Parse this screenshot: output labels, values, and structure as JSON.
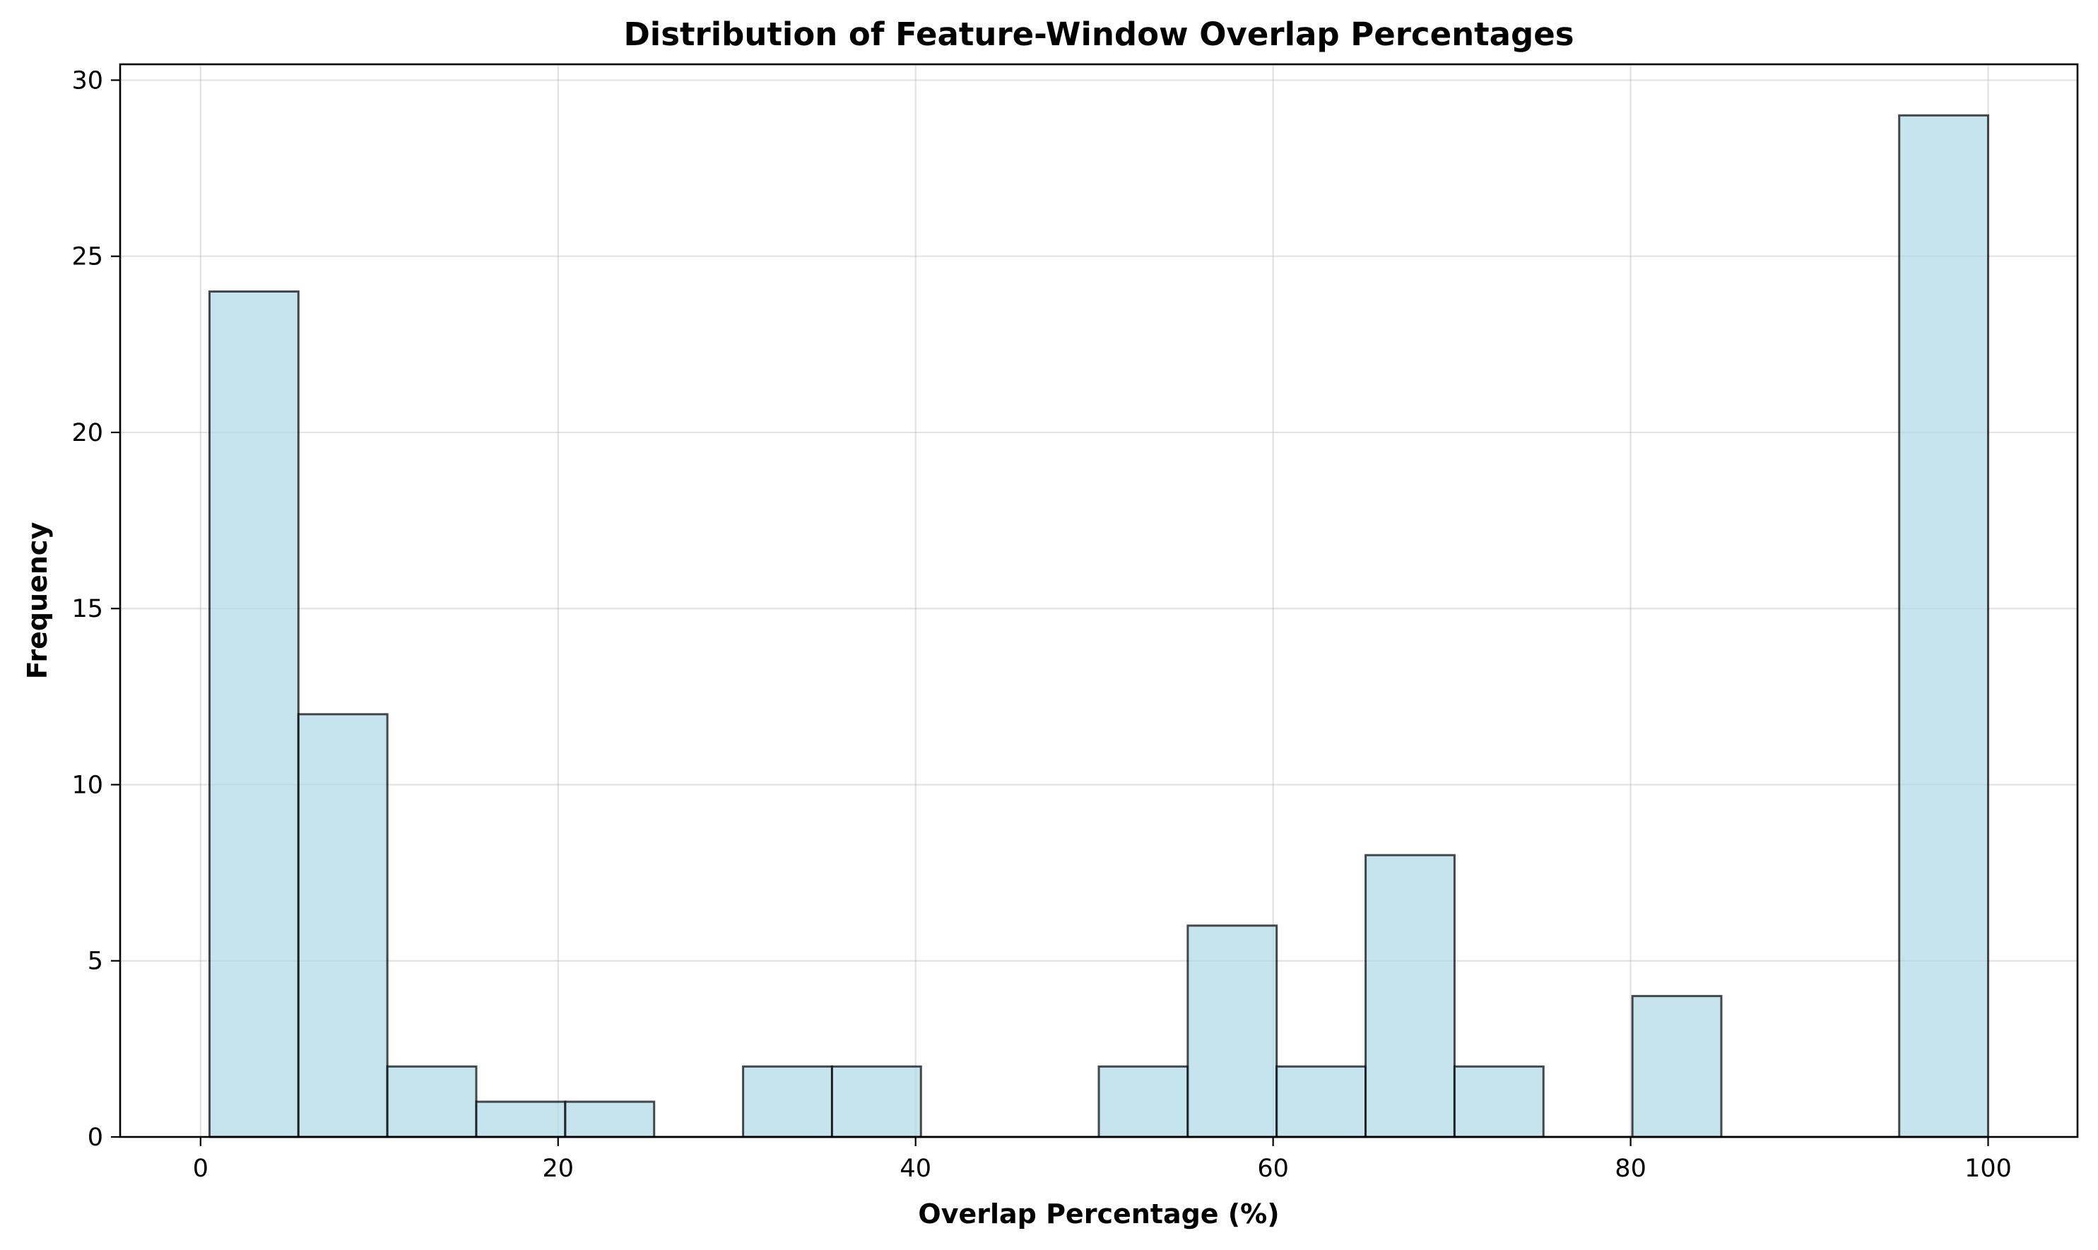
{
  "chart_data": {
    "type": "bar",
    "subtype": "histogram",
    "title": "Distribution of Feature-Window Overlap Percentages",
    "xlabel": "Overlap Percentage (%)",
    "ylabel": "Frequency",
    "xlim": [
      -4.5,
      105
    ],
    "ylim": [
      0,
      30.45
    ],
    "xticks": [
      0,
      20,
      40,
      60,
      80,
      100
    ],
    "yticks": [
      0,
      5,
      10,
      15,
      20,
      25,
      30
    ],
    "grid": true,
    "bins": [
      {
        "start": 0.5,
        "end": 5.475,
        "count": 24
      },
      {
        "start": 5.475,
        "end": 10.45,
        "count": 12
      },
      {
        "start": 10.45,
        "end": 15.425,
        "count": 2
      },
      {
        "start": 15.425,
        "end": 20.4,
        "count": 1
      },
      {
        "start": 20.4,
        "end": 25.375,
        "count": 1
      },
      {
        "start": 25.375,
        "end": 30.35,
        "count": 0
      },
      {
        "start": 30.35,
        "end": 35.325,
        "count": 2
      },
      {
        "start": 35.325,
        "end": 40.3,
        "count": 2
      },
      {
        "start": 40.3,
        "end": 45.275,
        "count": 0
      },
      {
        "start": 45.275,
        "end": 50.25,
        "count": 0
      },
      {
        "start": 50.25,
        "end": 55.225,
        "count": 2
      },
      {
        "start": 55.225,
        "end": 60.2,
        "count": 6
      },
      {
        "start": 60.2,
        "end": 65.175,
        "count": 2
      },
      {
        "start": 65.175,
        "end": 70.15,
        "count": 8
      },
      {
        "start": 70.15,
        "end": 75.125,
        "count": 2
      },
      {
        "start": 75.125,
        "end": 80.1,
        "count": 0
      },
      {
        "start": 80.1,
        "end": 85.075,
        "count": 4
      },
      {
        "start": 85.075,
        "end": 90.05,
        "count": 0
      },
      {
        "start": 90.05,
        "end": 95.025,
        "count": 0
      },
      {
        "start": 95.025,
        "end": 100.0,
        "count": 29
      }
    ],
    "colors": {
      "bar_fill": "#add8e6",
      "bar_edge": "#000000"
    }
  }
}
